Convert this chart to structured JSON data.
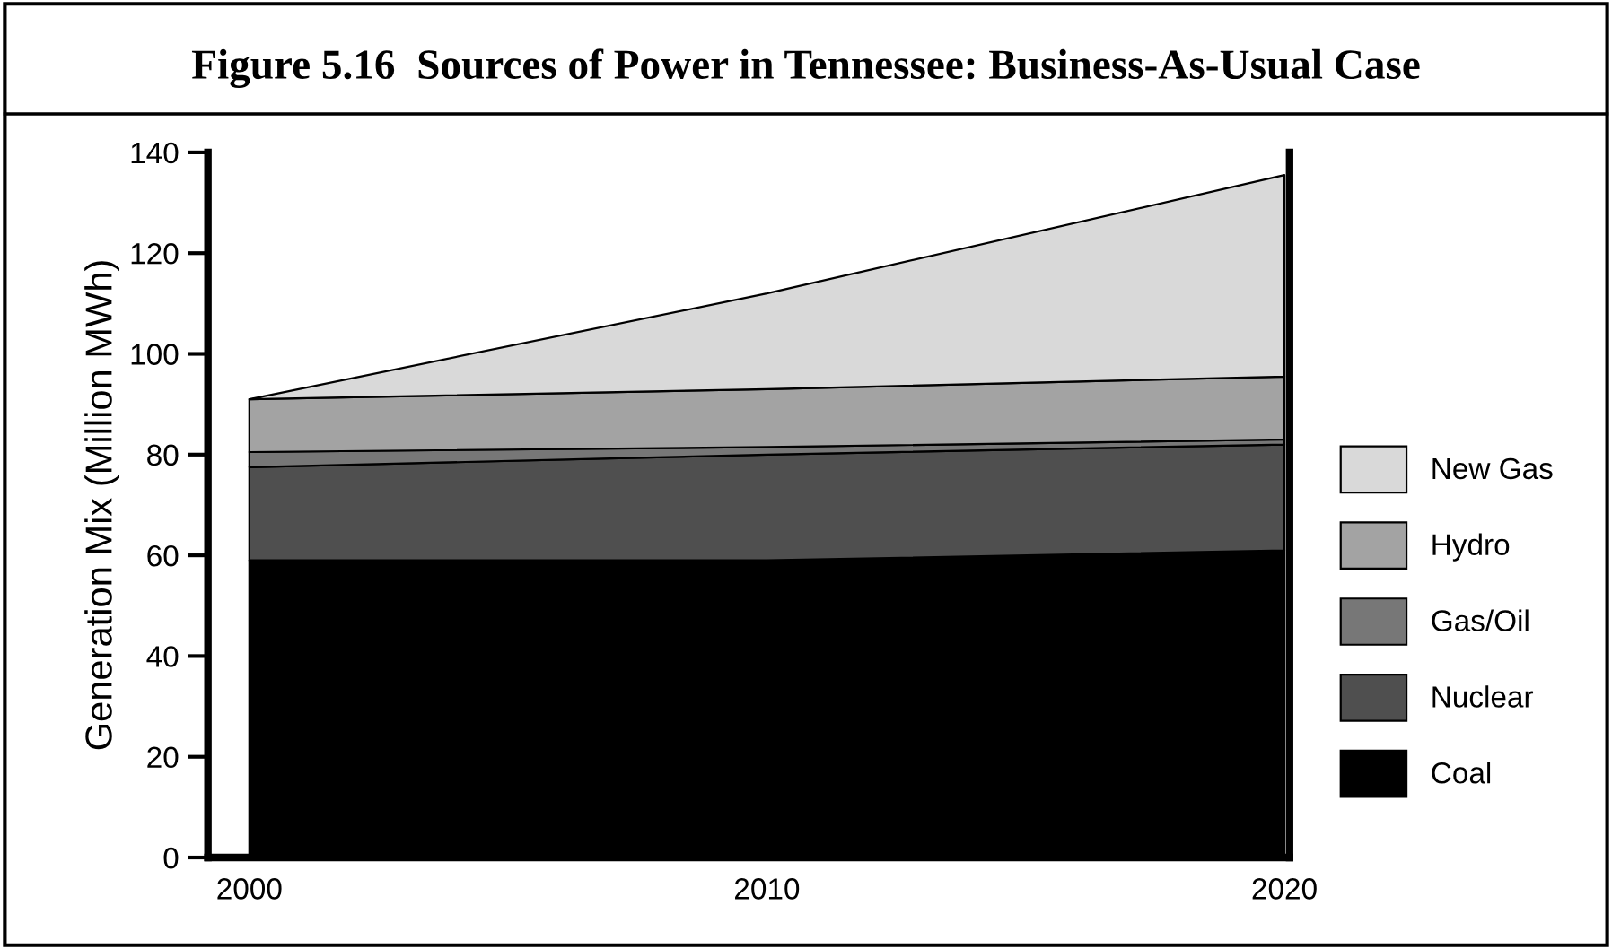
{
  "chart_data": {
    "type": "area",
    "stacked": true,
    "title": "Figure 5.16  Sources of Power in Tennessee: Business-As-Usual Case",
    "ylabel": "Generation Mix (Million MWh)",
    "x": [
      2000,
      2010,
      2020
    ],
    "xlim": [
      1999.2,
      2020.1
    ],
    "xticks": [
      2000,
      2010,
      2020
    ],
    "ylim": [
      0,
      140
    ],
    "yticks": [
      0,
      20,
      40,
      60,
      80,
      100,
      120,
      140
    ],
    "legend": "right",
    "grid": false,
    "series": [
      {
        "name": "Coal",
        "color": "#000000",
        "values": [
          59,
          59,
          61
        ]
      },
      {
        "name": "Nuclear",
        "color": "#4f4f4f",
        "values": [
          18.5,
          21,
          21
        ]
      },
      {
        "name": "Gas/Oil",
        "color": "#777777",
        "values": [
          3,
          1.5,
          1
        ]
      },
      {
        "name": "Hydro",
        "color": "#a3a3a3",
        "values": [
          10.5,
          11.5,
          12.5
        ]
      },
      {
        "name": "New Gas",
        "color": "#d9d9d9",
        "values": [
          0,
          19,
          40
        ]
      }
    ]
  }
}
